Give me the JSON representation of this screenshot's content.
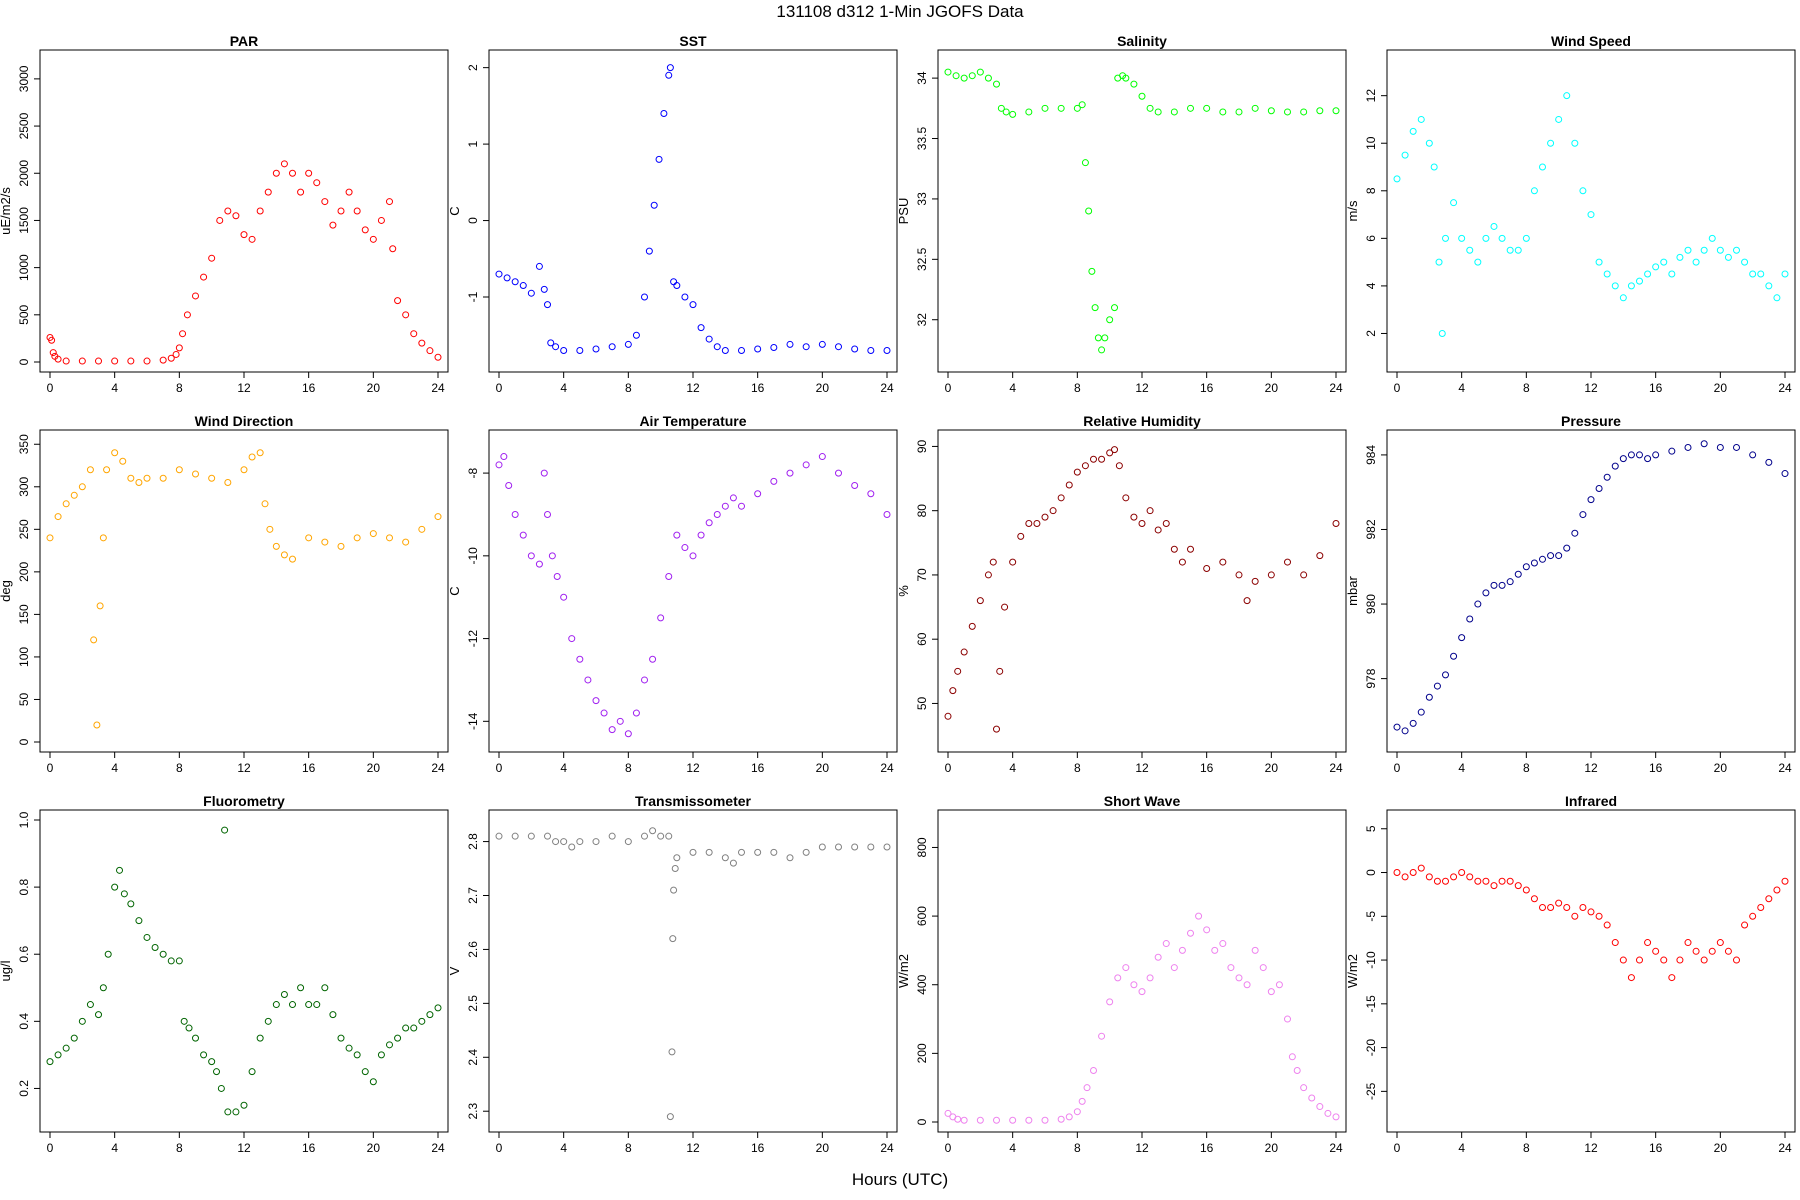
{
  "figure": {
    "title": "131108   d312   1-Min  JGOFS Data",
    "xlabel": "Hours (UTC)"
  },
  "chart_data": [
    {
      "type": "scatter",
      "title": "PAR",
      "ylabel": "uE/m2/s",
      "color": "#ff0000",
      "xlim": [
        0,
        24
      ],
      "ylim": [
        0,
        3200
      ],
      "xticks": [
        0,
        4,
        8,
        12,
        16,
        20,
        24
      ],
      "yticks": [
        0,
        500,
        1000,
        1500,
        2000,
        2500,
        3000
      ],
      "x": [
        0,
        0.1,
        0.2,
        0.3,
        0.5,
        1,
        2,
        3,
        4,
        5,
        6,
        7,
        7.5,
        7.8,
        8,
        8.2,
        8.5,
        9,
        9.5,
        10,
        10.5,
        11,
        11.5,
        12,
        12.5,
        13,
        13.5,
        14,
        14.5,
        15,
        15.5,
        16,
        16.5,
        17,
        17.5,
        18,
        18.5,
        19,
        19.5,
        20,
        20.5,
        21,
        21.2,
        21.5,
        22,
        22.5,
        23,
        23.5,
        24
      ],
      "y": [
        260,
        230,
        100,
        60,
        30,
        10,
        10,
        10,
        10,
        10,
        10,
        20,
        40,
        80,
        150,
        300,
        500,
        700,
        900,
        1100,
        1500,
        1600,
        1550,
        1350,
        1300,
        1600,
        1800,
        2000,
        2100,
        2000,
        1800,
        2000,
        1900,
        1700,
        1450,
        1600,
        1800,
        1600,
        1400,
        1300,
        1500,
        1700,
        1200,
        650,
        500,
        300,
        200,
        120,
        50
      ]
    },
    {
      "type": "scatter",
      "title": "SST",
      "ylabel": "C",
      "color": "#0000ff",
      "xlim": [
        0,
        24
      ],
      "ylim": [
        -1.85,
        2.1
      ],
      "xticks": [
        0,
        4,
        8,
        12,
        16,
        20,
        24
      ],
      "yticks": [
        -1,
        0,
        1,
        2
      ],
      "x": [
        0,
        0.5,
        1,
        1.5,
        2,
        2.5,
        2.8,
        3,
        3.2,
        3.5,
        4,
        5,
        6,
        7,
        8,
        8.5,
        9,
        9.3,
        9.6,
        9.9,
        10.2,
        10.5,
        10.6,
        10.8,
        11,
        11.5,
        12,
        12.5,
        13,
        13.5,
        14,
        15,
        16,
        17,
        18,
        19,
        20,
        21,
        22,
        23,
        24
      ],
      "y": [
        -0.7,
        -0.75,
        -0.8,
        -0.85,
        -0.95,
        -0.6,
        -0.9,
        -1.1,
        -1.6,
        -1.65,
        -1.7,
        -1.7,
        -1.68,
        -1.65,
        -1.62,
        -1.5,
        -1.0,
        -0.4,
        0.2,
        0.8,
        1.4,
        1.9,
        2.0,
        -0.8,
        -0.85,
        -1.0,
        -1.1,
        -1.4,
        -1.55,
        -1.65,
        -1.7,
        -1.7,
        -1.68,
        -1.66,
        -1.62,
        -1.65,
        -1.62,
        -1.65,
        -1.68,
        -1.7,
        -1.7
      ]
    },
    {
      "type": "scatter",
      "title": "Salinity",
      "ylabel": "PSU",
      "color": "#00ff00",
      "xlim": [
        0,
        24
      ],
      "ylim": [
        31.65,
        34.15
      ],
      "xticks": [
        0,
        4,
        8,
        12,
        16,
        20,
        24
      ],
      "yticks": [
        32.0,
        32.5,
        33.0,
        33.5,
        34.0
      ],
      "x": [
        0,
        0.5,
        1,
        1.5,
        2,
        2.5,
        3,
        3.3,
        3.6,
        4,
        5,
        6,
        7,
        8,
        8.3,
        8.5,
        8.7,
        8.9,
        9.1,
        9.3,
        9.5,
        9.7,
        10,
        10.3,
        10.5,
        10.8,
        11,
        11.5,
        12,
        12.5,
        13,
        14,
        15,
        16,
        17,
        18,
        19,
        20,
        21,
        22,
        23,
        24
      ],
      "y": [
        34.05,
        34.02,
        34.0,
        34.02,
        34.05,
        34.0,
        33.95,
        33.75,
        33.72,
        33.7,
        33.72,
        33.75,
        33.75,
        33.75,
        33.78,
        33.3,
        32.9,
        32.4,
        32.1,
        31.85,
        31.75,
        31.85,
        32.0,
        32.1,
        34.0,
        34.02,
        34.0,
        33.95,
        33.85,
        33.75,
        33.72,
        33.72,
        33.75,
        33.75,
        33.72,
        33.72,
        33.75,
        33.73,
        33.72,
        33.72,
        33.73,
        33.73
      ]
    },
    {
      "type": "scatter",
      "title": "Wind Speed",
      "ylabel": "m/s",
      "color": "#00ffff",
      "xlim": [
        0,
        24
      ],
      "ylim": [
        0.8,
        13.5
      ],
      "xticks": [
        0,
        4,
        8,
        12,
        16,
        20,
        24
      ],
      "yticks": [
        2,
        4,
        6,
        8,
        10,
        12
      ],
      "x": [
        0,
        0.5,
        1,
        1.5,
        2,
        2.3,
        2.6,
        2.8,
        3,
        3.5,
        4,
        4.5,
        5,
        5.5,
        6,
        6.5,
        7,
        7.5,
        8,
        8.5,
        9,
        9.5,
        10,
        10.5,
        11,
        11.5,
        12,
        12.5,
        13,
        13.5,
        14,
        14.5,
        15,
        15.5,
        16,
        16.5,
        17,
        17.5,
        18,
        18.5,
        19,
        19.5,
        20,
        20.5,
        21,
        21.5,
        22,
        22.5,
        23,
        23.5,
        24
      ],
      "y": [
        8.5,
        9.5,
        10.5,
        11,
        10,
        9,
        5,
        2,
        6,
        7.5,
        6,
        5.5,
        5,
        6,
        6.5,
        6,
        5.5,
        5.5,
        6,
        8,
        9,
        10,
        11,
        12,
        10,
        8,
        7,
        5,
        4.5,
        4,
        3.5,
        4,
        4.2,
        4.5,
        4.8,
        5,
        4.5,
        5.2,
        5.5,
        5,
        5.5,
        6,
        5.5,
        5.2,
        5.5,
        5,
        4.5,
        4.5,
        4,
        3.5,
        4.5
      ]
    },
    {
      "type": "scatter",
      "title": "Wind Direction",
      "ylabel": "deg",
      "color": "#ffa500",
      "xlim": [
        0,
        24
      ],
      "ylim": [
        0,
        355
      ],
      "xticks": [
        0,
        4,
        8,
        12,
        16,
        20,
        24
      ],
      "yticks": [
        0,
        50,
        100,
        150,
        200,
        250,
        300,
        350
      ],
      "x": [
        0,
        0.5,
        1,
        1.5,
        2,
        2.5,
        2.7,
        2.9,
        3.1,
        3.3,
        3.5,
        4,
        4.5,
        5,
        5.5,
        6,
        7,
        8,
        9,
        10,
        11,
        12,
        12.5,
        13,
        13.3,
        13.6,
        14,
        14.5,
        15,
        16,
        17,
        18,
        19,
        20,
        21,
        22,
        23,
        24
      ],
      "y": [
        240,
        265,
        280,
        290,
        300,
        320,
        120,
        20,
        160,
        240,
        320,
        340,
        330,
        310,
        305,
        310,
        310,
        320,
        315,
        310,
        305,
        320,
        335,
        340,
        280,
        250,
        230,
        220,
        215,
        240,
        235,
        230,
        240,
        245,
        240,
        235,
        250,
        265
      ]
    },
    {
      "type": "scatter",
      "title": "Air Temperature",
      "ylabel": "C",
      "color": "#a020f0",
      "xlim": [
        0,
        24
      ],
      "ylim": [
        -14.5,
        -7.2
      ],
      "xticks": [
        0,
        4,
        8,
        12,
        16,
        20,
        24
      ],
      "yticks": [
        -14,
        -12,
        -10,
        -8
      ],
      "x": [
        0,
        0.3,
        0.6,
        1,
        1.5,
        2,
        2.5,
        2.8,
        3,
        3.3,
        3.6,
        4,
        4.5,
        5,
        5.5,
        6,
        6.5,
        7,
        7.5,
        8,
        8.5,
        9,
        9.5,
        10,
        10.5,
        11,
        11.5,
        12,
        12.5,
        13,
        13.5,
        14,
        14.5,
        15,
        16,
        17,
        18,
        19,
        20,
        21,
        22,
        23,
        24
      ],
      "y": [
        -7.8,
        -7.6,
        -8.3,
        -9.0,
        -9.5,
        -10.0,
        -10.2,
        -8.0,
        -9.0,
        -10.0,
        -10.5,
        -11.0,
        -12.0,
        -12.5,
        -13.0,
        -13.5,
        -13.8,
        -14.2,
        -14.0,
        -14.3,
        -13.8,
        -13.0,
        -12.5,
        -11.5,
        -10.5,
        -9.5,
        -9.8,
        -10.0,
        -9.5,
        -9.2,
        -9.0,
        -8.8,
        -8.6,
        -8.8,
        -8.5,
        -8.2,
        -8.0,
        -7.8,
        -7.6,
        -8.0,
        -8.3,
        -8.5,
        -9.0
      ]
    },
    {
      "type": "scatter",
      "title": "Relative Humidity",
      "ylabel": "%",
      "color": "#8b0000",
      "xlim": [
        0,
        24
      ],
      "ylim": [
        44,
        91
      ],
      "xticks": [
        0,
        4,
        8,
        12,
        16,
        20,
        24
      ],
      "yticks": [
        50,
        60,
        70,
        80,
        90
      ],
      "x": [
        0,
        0.3,
        0.6,
        1,
        1.5,
        2,
        2.5,
        2.8,
        3,
        3.2,
        3.5,
        4,
        4.5,
        5,
        5.5,
        6,
        6.5,
        7,
        7.5,
        8,
        8.5,
        9,
        9.5,
        10,
        10.3,
        10.6,
        11,
        11.5,
        12,
        12.5,
        13,
        13.5,
        14,
        14.5,
        15,
        16,
        17,
        18,
        18.5,
        19,
        20,
        21,
        22,
        23,
        24
      ],
      "y": [
        48,
        52,
        55,
        58,
        62,
        66,
        70,
        72,
        46,
        55,
        65,
        72,
        76,
        78,
        78,
        79,
        80,
        82,
        84,
        86,
        87,
        88,
        88,
        89,
        89.5,
        87,
        82,
        79,
        78,
        80,
        77,
        78,
        74,
        72,
        74,
        71,
        72,
        70,
        66,
        69,
        70,
        72,
        70,
        73,
        78
      ]
    },
    {
      "type": "scatter",
      "title": "Pressure",
      "ylabel": "mbar",
      "color": "#00008b",
      "xlim": [
        0,
        24
      ],
      "ylim": [
        976.3,
        984.4
      ],
      "xticks": [
        0,
        4,
        8,
        12,
        16,
        20,
        24
      ],
      "yticks": [
        978,
        980,
        982,
        984
      ],
      "x": [
        0,
        0.5,
        1,
        1.5,
        2,
        2.5,
        3,
        3.5,
        4,
        4.5,
        5,
        5.5,
        6,
        6.5,
        7,
        7.5,
        8,
        8.5,
        9,
        9.5,
        10,
        10.5,
        11,
        11.5,
        12,
        12.5,
        13,
        13.5,
        14,
        14.5,
        15,
        15.5,
        16,
        17,
        18,
        19,
        20,
        21,
        22,
        23,
        24
      ],
      "y": [
        976.7,
        976.6,
        976.8,
        977.1,
        977.5,
        977.8,
        978.1,
        978.6,
        979.1,
        979.6,
        980.0,
        980.3,
        980.5,
        980.5,
        980.6,
        980.8,
        981.0,
        981.1,
        981.2,
        981.3,
        981.3,
        981.5,
        981.9,
        982.4,
        982.8,
        983.1,
        983.4,
        983.7,
        983.9,
        984.0,
        984.0,
        983.9,
        984.0,
        984.1,
        984.2,
        984.3,
        984.2,
        984.2,
        984.0,
        983.8,
        983.5
      ]
    },
    {
      "type": "scatter",
      "title": "Fluorometry",
      "ylabel": "ug/l",
      "color": "#006400",
      "xlim": [
        0,
        24
      ],
      "ylim": [
        0.1,
        1.0
      ],
      "xticks": [
        0,
        4,
        8,
        12,
        16,
        20,
        24
      ],
      "yticks": [
        0.2,
        0.4,
        0.6,
        0.8,
        1.0
      ],
      "x": [
        0,
        0.5,
        1,
        1.5,
        2,
        2.5,
        3,
        3.3,
        3.6,
        4,
        4.3,
        4.6,
        5,
        5.5,
        6,
        6.5,
        7,
        7.5,
        8,
        8.3,
        8.6,
        9,
        9.5,
        10,
        10.3,
        10.6,
        10.8,
        11,
        11.5,
        12,
        12.5,
        13,
        13.5,
        14,
        14.5,
        15,
        15.5,
        16,
        16.5,
        17,
        17.5,
        18,
        18.5,
        19,
        19.5,
        20,
        20.5,
        21,
        21.5,
        22,
        22.5,
        23,
        23.5,
        24
      ],
      "y": [
        0.28,
        0.3,
        0.32,
        0.35,
        0.4,
        0.45,
        0.42,
        0.5,
        0.6,
        0.8,
        0.85,
        0.78,
        0.75,
        0.7,
        0.65,
        0.62,
        0.6,
        0.58,
        0.58,
        0.4,
        0.38,
        0.35,
        0.3,
        0.28,
        0.25,
        0.2,
        0.97,
        0.13,
        0.13,
        0.15,
        0.25,
        0.35,
        0.4,
        0.45,
        0.48,
        0.45,
        0.5,
        0.45,
        0.45,
        0.5,
        0.42,
        0.35,
        0.32,
        0.3,
        0.25,
        0.22,
        0.3,
        0.33,
        0.35,
        0.38,
        0.38,
        0.4,
        0.42,
        0.44
      ]
    },
    {
      "type": "scatter",
      "title": "Transmissometer",
      "ylabel": "V",
      "color": "#808080",
      "xlim": [
        0,
        24
      ],
      "ylim": [
        2.28,
        2.84
      ],
      "xticks": [
        0,
        4,
        8,
        12,
        16,
        20,
        24
      ],
      "yticks": [
        2.3,
        2.4,
        2.5,
        2.6,
        2.7,
        2.8
      ],
      "x": [
        0,
        1,
        2,
        3,
        3.5,
        4,
        4.5,
        5,
        6,
        7,
        8,
        9,
        9.5,
        10,
        10.5,
        10.6,
        10.7,
        10.75,
        10.8,
        10.9,
        11,
        12,
        13,
        14,
        14.5,
        15,
        16,
        17,
        18,
        19,
        20,
        21,
        22,
        23,
        24
      ],
      "y": [
        2.81,
        2.81,
        2.81,
        2.81,
        2.8,
        2.8,
        2.79,
        2.8,
        2.8,
        2.81,
        2.8,
        2.81,
        2.82,
        2.81,
        2.81,
        2.29,
        2.41,
        2.62,
        2.71,
        2.75,
        2.77,
        2.78,
        2.78,
        2.77,
        2.76,
        2.78,
        2.78,
        2.78,
        2.77,
        2.78,
        2.79,
        2.79,
        2.79,
        2.79,
        2.79
      ]
    },
    {
      "type": "scatter",
      "title": "Short Wave",
      "ylabel": "W/m2",
      "color": "#ee82ee",
      "xlim": [
        0,
        24
      ],
      "ylim": [
        0,
        880
      ],
      "xticks": [
        0,
        4,
        8,
        12,
        16,
        20,
        24
      ],
      "yticks": [
        0,
        200,
        400,
        600,
        800
      ],
      "x": [
        0,
        0.3,
        0.6,
        1,
        2,
        3,
        4,
        5,
        6,
        7,
        7.5,
        8,
        8.3,
        8.6,
        9,
        9.5,
        10,
        10.5,
        11,
        11.5,
        12,
        12.5,
        13,
        13.5,
        14,
        14.5,
        15,
        15.5,
        16,
        16.5,
        17,
        17.5,
        18,
        18.5,
        19,
        19.5,
        20,
        20.5,
        21,
        21.3,
        21.6,
        22,
        22.5,
        23,
        23.5,
        24
      ],
      "y": [
        25,
        15,
        8,
        5,
        5,
        5,
        5,
        5,
        5,
        8,
        15,
        30,
        60,
        100,
        150,
        250,
        350,
        420,
        450,
        400,
        380,
        420,
        480,
        520,
        450,
        500,
        550,
        600,
        560,
        500,
        520,
        450,
        420,
        400,
        500,
        450,
        380,
        400,
        300,
        190,
        150,
        100,
        70,
        45,
        25,
        15
      ]
    },
    {
      "type": "scatter",
      "title": "Infrared",
      "ylabel": "W/m2",
      "color": "#ff0000",
      "xlim": [
        0,
        24
      ],
      "ylim": [
        -28.5,
        6
      ],
      "xticks": [
        0,
        4,
        8,
        12,
        16,
        20,
        24
      ],
      "yticks": [
        -25,
        -20,
        -15,
        -10,
        -5,
        0,
        5
      ],
      "x": [
        0,
        0.5,
        1,
        1.5,
        2,
        2.5,
        3,
        3.5,
        4,
        4.5,
        5,
        5.5,
        6,
        6.5,
        7,
        7.5,
        8,
        8.5,
        9,
        9.5,
        10,
        10.5,
        11,
        11.5,
        12,
        12.5,
        13,
        13.5,
        14,
        14.5,
        15,
        15.5,
        16,
        16.5,
        17,
        17.5,
        18,
        18.5,
        19,
        19.5,
        20,
        20.5,
        21,
        21.5,
        22,
        22.5,
        23,
        23.5,
        24
      ],
      "y": [
        0,
        -0.5,
        0,
        0.5,
        -0.5,
        -1,
        -1,
        -0.5,
        0,
        -0.5,
        -1,
        -1,
        -1.5,
        -1,
        -1,
        -1.5,
        -2,
        -3,
        -4,
        -4,
        -3.5,
        -4,
        -5,
        -4,
        -4.5,
        -5,
        -6,
        -8,
        -10,
        -12,
        -10,
        -8,
        -9,
        -10,
        -12,
        -10,
        -8,
        -9,
        -10,
        -9,
        -8,
        -9,
        -10,
        -6,
        -5,
        -4,
        -3,
        -2,
        -1
      ]
    }
  ]
}
